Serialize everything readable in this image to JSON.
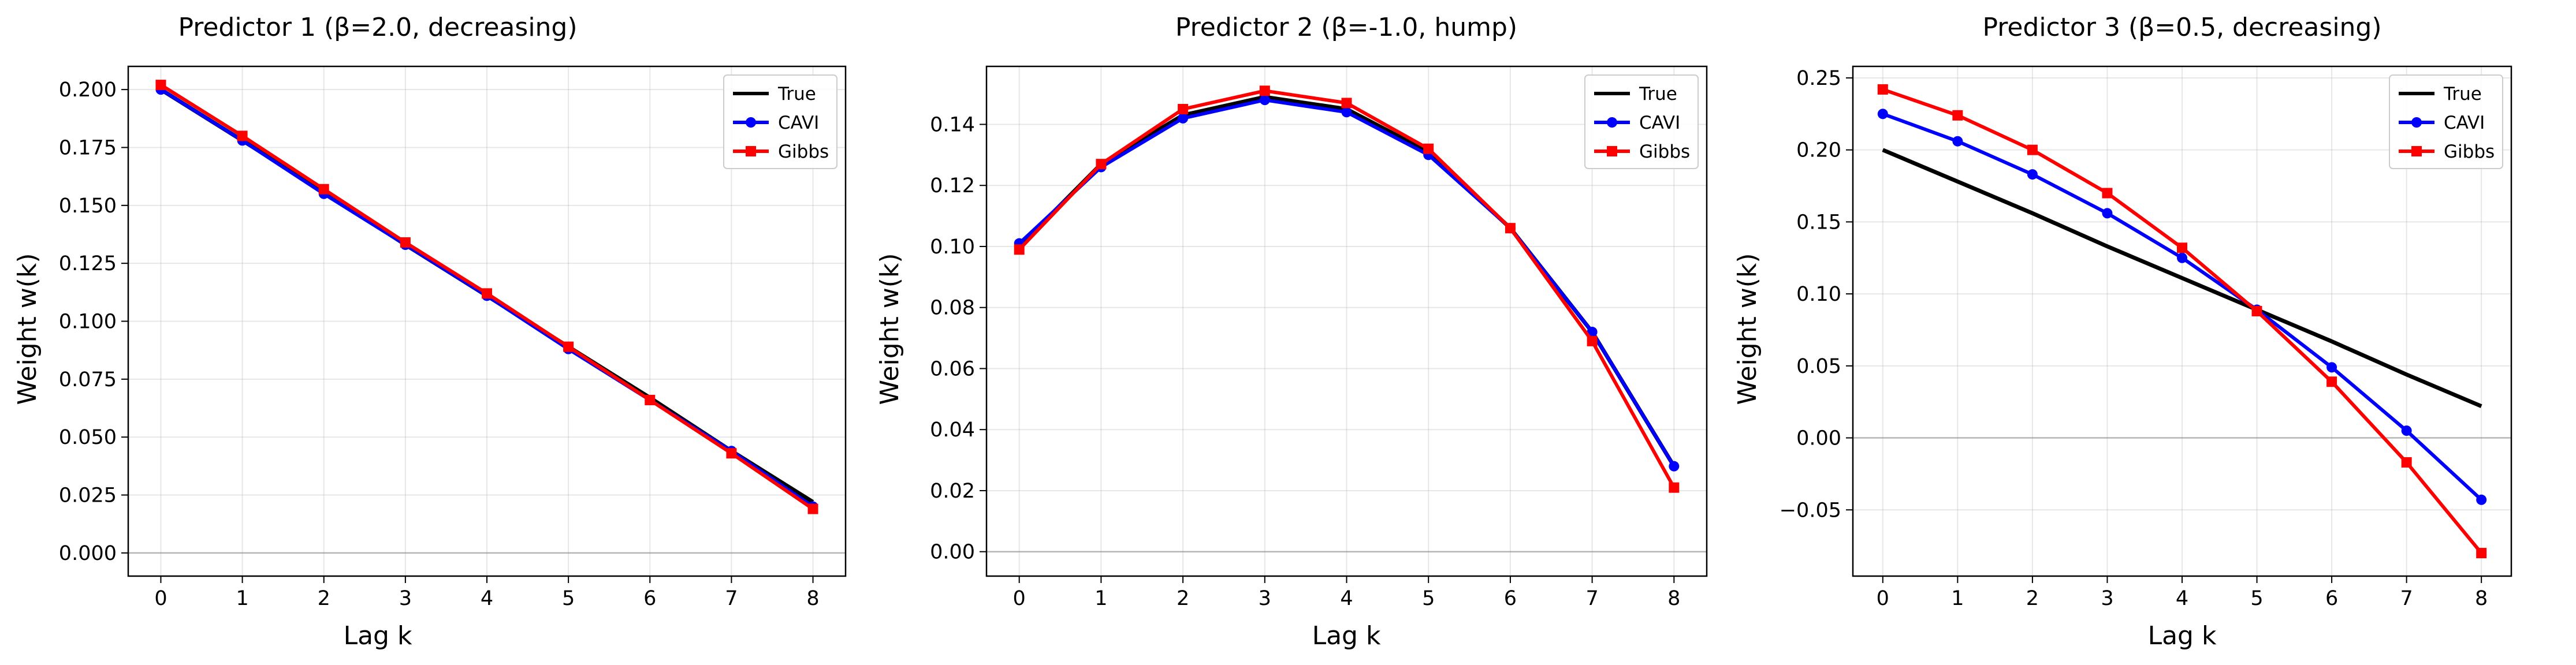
{
  "chart_data": [
    {
      "type": "line",
      "title": "Predictor 1 (β=2.0, decreasing)",
      "xlabel": "Lag k",
      "ylabel": "Weight w(k)",
      "xlim": [
        -0.4,
        8.4
      ],
      "ylim": [
        -0.01,
        0.21
      ],
      "xticks": [
        0,
        1,
        2,
        3,
        4,
        5,
        6,
        7,
        8
      ],
      "yticks": [
        0.0,
        0.025,
        0.05,
        0.075,
        0.1,
        0.125,
        0.15,
        0.175,
        0.2
      ],
      "ytick_labels": [
        "0.000",
        "0.025",
        "0.050",
        "0.075",
        "0.100",
        "0.125",
        "0.150",
        "0.175",
        "0.200"
      ],
      "zero_line": true,
      "grid": true,
      "legend": "top-right",
      "x": [
        0,
        1,
        2,
        3,
        4,
        5,
        6,
        7,
        8
      ],
      "series": [
        {
          "name": "True",
          "color": "#000000",
          "marker": "none",
          "values": [
            0.2,
            0.178,
            0.156,
            0.133,
            0.111,
            0.089,
            0.067,
            0.044,
            0.022
          ]
        },
        {
          "name": "CAVI",
          "color": "#0000ff",
          "marker": "circle",
          "values": [
            0.2,
            0.178,
            0.155,
            0.133,
            0.111,
            0.088,
            0.066,
            0.044,
            0.02
          ]
        },
        {
          "name": "Gibbs",
          "color": "#ff0000",
          "marker": "square",
          "values": [
            0.202,
            0.18,
            0.157,
            0.134,
            0.112,
            0.089,
            0.066,
            0.043,
            0.019
          ]
        }
      ]
    },
    {
      "type": "line",
      "title": "Predictor 2 (β=-1.0, hump)",
      "xlabel": "Lag k",
      "ylabel": "Weight w(k)",
      "xlim": [
        -0.4,
        8.4
      ],
      "ylim": [
        -0.008,
        0.159
      ],
      "xticks": [
        0,
        1,
        2,
        3,
        4,
        5,
        6,
        7,
        8
      ],
      "yticks": [
        0.0,
        0.02,
        0.04,
        0.06,
        0.08,
        0.1,
        0.12,
        0.14
      ],
      "ytick_labels": [
        "0.00",
        "0.02",
        "0.04",
        "0.06",
        "0.08",
        "0.10",
        "0.12",
        "0.14"
      ],
      "zero_line": true,
      "grid": true,
      "legend": "top-right",
      "x": [
        0,
        1,
        2,
        3,
        4,
        5,
        6,
        7,
        8
      ],
      "series": [
        {
          "name": "True",
          "color": "#000000",
          "marker": "none",
          "values": [
            0.1,
            0.127,
            0.143,
            0.149,
            0.145,
            0.131,
            0.106,
            0.072,
            0.028
          ]
        },
        {
          "name": "CAVI",
          "color": "#0000ff",
          "marker": "circle",
          "values": [
            0.101,
            0.126,
            0.142,
            0.148,
            0.144,
            0.13,
            0.106,
            0.072,
            0.028
          ]
        },
        {
          "name": "Gibbs",
          "color": "#ff0000",
          "marker": "square",
          "values": [
            0.099,
            0.127,
            0.145,
            0.151,
            0.147,
            0.132,
            0.106,
            0.069,
            0.021
          ]
        }
      ]
    },
    {
      "type": "line",
      "title": "Predictor 3 (β=0.5, decreasing)",
      "xlabel": "Lag k",
      "ylabel": "Weight w(k)",
      "xlim": [
        -0.4,
        8.4
      ],
      "ylim": [
        -0.096,
        0.258
      ],
      "xticks": [
        0,
        1,
        2,
        3,
        4,
        5,
        6,
        7,
        8
      ],
      "yticks": [
        -0.05,
        0.0,
        0.05,
        0.1,
        0.15,
        0.2,
        0.25
      ],
      "ytick_labels": [
        "−0.05",
        "0.00",
        "0.05",
        "0.10",
        "0.15",
        "0.20",
        "0.25"
      ],
      "zero_line": true,
      "grid": true,
      "legend": "top-right",
      "x": [
        0,
        1,
        2,
        3,
        4,
        5,
        6,
        7,
        8
      ],
      "series": [
        {
          "name": "True",
          "color": "#000000",
          "marker": "none",
          "values": [
            0.2,
            0.178,
            0.156,
            0.133,
            0.111,
            0.089,
            0.067,
            0.044,
            0.022
          ]
        },
        {
          "name": "CAVI",
          "color": "#0000ff",
          "marker": "circle",
          "values": [
            0.225,
            0.206,
            0.183,
            0.156,
            0.125,
            0.089,
            0.049,
            0.005,
            -0.043
          ]
        },
        {
          "name": "Gibbs",
          "color": "#ff0000",
          "marker": "square",
          "values": [
            0.242,
            0.224,
            0.2,
            0.17,
            0.132,
            0.088,
            0.039,
            -0.017,
            -0.08
          ]
        }
      ]
    }
  ]
}
